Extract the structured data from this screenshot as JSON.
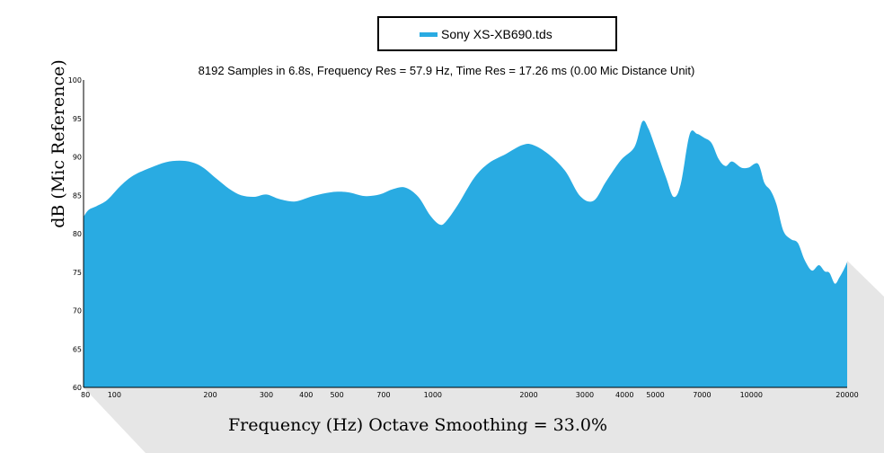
{
  "chart_data": {
    "type": "area",
    "title": "8192 Samples in 6.8s, Frequency Res = 57.9 Hz, Time Res = 17.26 ms (0.00 Mic Distance Unit)",
    "xlabel": "Frequency (Hz) Octave Smoothing = 33.0%",
    "ylabel": "dB (Mic Reference)",
    "x_scale": "log",
    "xlim": [
      80,
      20000
    ],
    "ylim": [
      60,
      100
    ],
    "x_ticks": [
      80,
      100,
      200,
      300,
      400,
      500,
      700,
      1000,
      2000,
      3000,
      4000,
      5000,
      7000,
      10000,
      20000
    ],
    "x_tick_labels": [
      "80",
      "100",
      "200",
      "300",
      "400",
      "500",
      "700",
      "1000",
      "2000",
      "3000",
      "4000",
      "5000",
      "7000",
      "10000",
      "20000"
    ],
    "y_ticks": [
      60,
      65,
      70,
      75,
      80,
      85,
      90,
      95,
      100
    ],
    "y_tick_labels": [
      "60",
      "65",
      "70",
      "75",
      "80",
      "85",
      "90",
      "95",
      "100"
    ],
    "grid": false,
    "legend_position": "top-center",
    "colors": {
      "fill": "#29abe2",
      "legend_swatch": "#29abe2",
      "shadow": "#e6e6e6",
      "axis": "#000000"
    },
    "series": [
      {
        "name": "Sony XS-XB690.tds",
        "x": [
          80,
          83,
          88,
          95,
          105,
          115,
          130,
          145,
          160,
          175,
          190,
          210,
          230,
          250,
          275,
          300,
          330,
          370,
          420,
          480,
          540,
          610,
          680,
          750,
          820,
          900,
          980,
          1050,
          1100,
          1200,
          1350,
          1500,
          1700,
          1900,
          2050,
          2300,
          2600,
          2900,
          3200,
          3500,
          3900,
          4300,
          4550,
          4750,
          5000,
          5400,
          5700,
          6000,
          6400,
          6750,
          7100,
          7500,
          7900,
          8300,
          8700,
          9300,
          9800,
          10500,
          11000,
          11500,
          12000,
          12600,
          13300,
          14000,
          14700,
          15500,
          16300,
          17000,
          17600,
          18300,
          18900,
          19500,
          20000
        ],
        "values": [
          82.2,
          83.1,
          83.6,
          84.4,
          86.3,
          87.6,
          88.6,
          89.3,
          89.5,
          89.3,
          88.6,
          87.1,
          85.8,
          85.0,
          84.8,
          85.1,
          84.5,
          84.2,
          84.9,
          85.4,
          85.4,
          84.9,
          85.1,
          85.8,
          86.0,
          84.8,
          82.4,
          81.2,
          81.6,
          83.8,
          87.3,
          89.2,
          90.4,
          91.5,
          91.6,
          90.4,
          88.2,
          84.9,
          84.3,
          86.8,
          89.6,
          91.3,
          94.6,
          93.7,
          91.2,
          87.3,
          84.8,
          86.4,
          92.9,
          93.0,
          92.5,
          91.8,
          89.7,
          88.8,
          89.4,
          88.6,
          88.6,
          89.1,
          86.6,
          85.6,
          83.8,
          80.4,
          79.3,
          78.8,
          76.6,
          75.2,
          75.9,
          75.1,
          74.9,
          73.5,
          74.3,
          75.3,
          76.3
        ]
      }
    ]
  },
  "legend": {
    "label": "Sony XS-XB690.tds"
  }
}
